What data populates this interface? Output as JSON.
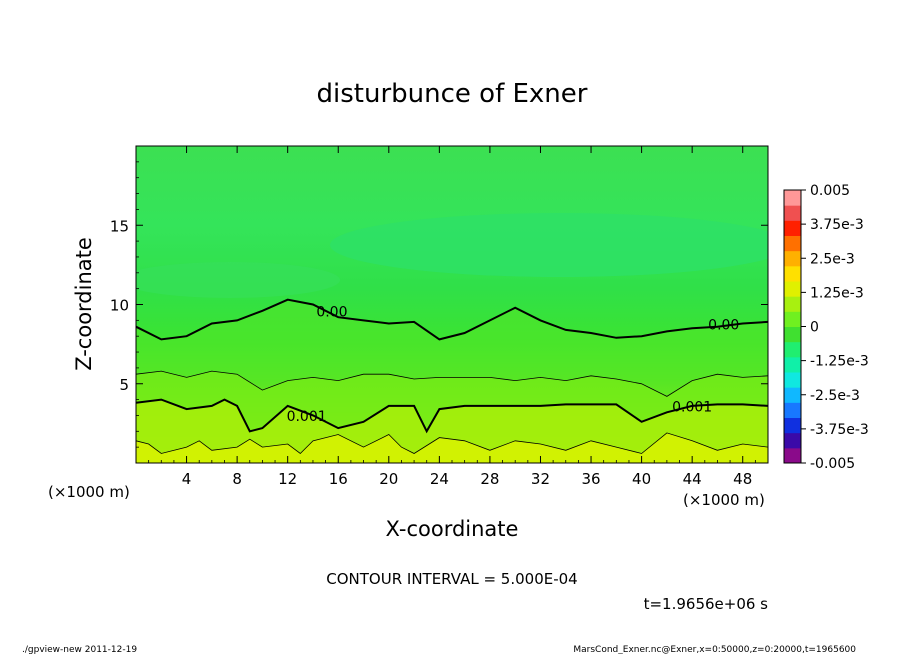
{
  "chart_data": {
    "type": "heatmap",
    "title": "disturbunce of Exner",
    "xlabel": "X-coordinate",
    "ylabel": "Z-coordinate",
    "x_unit_left": "(×1000 m)",
    "x_unit_right": "(×1000 m)",
    "xlim": [
      0,
      50
    ],
    "ylim": [
      0,
      20
    ],
    "x_ticks": [
      "4",
      "8",
      "12",
      "16",
      "20",
      "24",
      "28",
      "32",
      "36",
      "40",
      "44",
      "48"
    ],
    "y_ticks": [
      "5",
      "10",
      "15"
    ],
    "colorbar": {
      "labels": [
        "0.005",
        "3.75e-3",
        "2.5e-3",
        "1.25e-3",
        "0",
        "-1.25e-3",
        "-2.5e-3",
        "-3.75e-3",
        "-0.005"
      ],
      "min": -0.005,
      "max": 0.005,
      "colors": [
        "#8a0a8a",
        "#3a0aa8",
        "#1030e0",
        "#1878ff",
        "#10b8ff",
        "#10e8e0",
        "#10f0a8",
        "#20ee70",
        "#40e030",
        "#70f020",
        "#a8f010",
        "#e0f000",
        "#ffe000",
        "#ffb000",
        "#ff7000",
        "#ff2000",
        "#f05050",
        "#ff9898"
      ]
    },
    "contour_labels": [
      {
        "text": "0.00",
        "x": 15.5,
        "z": 9.3
      },
      {
        "text": "0.00",
        "x": 46.5,
        "z": 8.5
      },
      {
        "text": "0.001",
        "x": 13.5,
        "z": 2.7
      },
      {
        "text": "0.001",
        "x": 44.0,
        "z": 3.3
      }
    ],
    "zero_contour": [
      [
        0,
        8.6
      ],
      [
        2,
        7.8
      ],
      [
        4,
        8.0
      ],
      [
        6,
        8.8
      ],
      [
        8,
        9.0
      ],
      [
        10,
        9.6
      ],
      [
        12,
        10.3
      ],
      [
        14,
        10.0
      ],
      [
        16,
        9.2
      ],
      [
        18,
        9.0
      ],
      [
        20,
        8.8
      ],
      [
        22,
        8.9
      ],
      [
        24,
        7.8
      ],
      [
        26,
        8.2
      ],
      [
        28,
        9.0
      ],
      [
        30,
        9.8
      ],
      [
        32,
        9.0
      ],
      [
        34,
        8.4
      ],
      [
        36,
        8.2
      ],
      [
        38,
        7.9
      ],
      [
        40,
        8.0
      ],
      [
        42,
        8.3
      ],
      [
        44,
        8.5
      ],
      [
        46,
        8.6
      ],
      [
        48,
        8.8
      ],
      [
        50,
        8.9
      ]
    ],
    "contour_0005": [
      [
        0,
        5.6
      ],
      [
        2,
        5.8
      ],
      [
        4,
        5.4
      ],
      [
        6,
        5.8
      ],
      [
        8,
        5.6
      ],
      [
        10,
        4.6
      ],
      [
        12,
        5.2
      ],
      [
        14,
        5.4
      ],
      [
        16,
        5.2
      ],
      [
        18,
        5.6
      ],
      [
        20,
        5.6
      ],
      [
        22,
        5.3
      ],
      [
        24,
        5.4
      ],
      [
        26,
        5.4
      ],
      [
        28,
        5.4
      ],
      [
        30,
        5.2
      ],
      [
        32,
        5.4
      ],
      [
        34,
        5.2
      ],
      [
        36,
        5.5
      ],
      [
        38,
        5.3
      ],
      [
        40,
        5.0
      ],
      [
        42,
        4.2
      ],
      [
        44,
        5.2
      ],
      [
        46,
        5.6
      ],
      [
        48,
        5.4
      ],
      [
        50,
        5.5
      ]
    ],
    "contour_001": [
      [
        0,
        3.8
      ],
      [
        2,
        4.0
      ],
      [
        4,
        3.4
      ],
      [
        6,
        3.6
      ],
      [
        7,
        4.0
      ],
      [
        8,
        3.6
      ],
      [
        9,
        2.0
      ],
      [
        10,
        2.2
      ],
      [
        12,
        3.6
      ],
      [
        14,
        3.0
      ],
      [
        16,
        2.2
      ],
      [
        18,
        2.6
      ],
      [
        20,
        3.6
      ],
      [
        22,
        3.6
      ],
      [
        23,
        2.0
      ],
      [
        24,
        3.4
      ],
      [
        26,
        3.6
      ],
      [
        28,
        3.6
      ],
      [
        30,
        3.6
      ],
      [
        32,
        3.6
      ],
      [
        34,
        3.7
      ],
      [
        36,
        3.7
      ],
      [
        38,
        3.7
      ],
      [
        40,
        2.6
      ],
      [
        42,
        3.2
      ],
      [
        44,
        3.6
      ],
      [
        46,
        3.7
      ],
      [
        48,
        3.7
      ],
      [
        50,
        3.6
      ]
    ],
    "contour_0015": [
      [
        0,
        1.4
      ],
      [
        1,
        1.2
      ],
      [
        2,
        0.6
      ],
      [
        4,
        1.0
      ],
      [
        5,
        1.4
      ],
      [
        6,
        0.8
      ],
      [
        8,
        1.0
      ],
      [
        9,
        1.5
      ],
      [
        10,
        1.0
      ],
      [
        12,
        1.2
      ],
      [
        13,
        0.6
      ],
      [
        14,
        1.4
      ],
      [
        16,
        1.8
      ],
      [
        18,
        1.0
      ],
      [
        20,
        1.8
      ],
      [
        21,
        1.0
      ],
      [
        22,
        0.6
      ],
      [
        24,
        1.6
      ],
      [
        26,
        1.4
      ],
      [
        28,
        0.8
      ],
      [
        30,
        1.4
      ],
      [
        32,
        1.2
      ],
      [
        34,
        0.8
      ],
      [
        36,
        1.4
      ],
      [
        38,
        1.0
      ],
      [
        40,
        0.6
      ],
      [
        42,
        1.9
      ],
      [
        44,
        1.4
      ],
      [
        46,
        0.8
      ],
      [
        48,
        1.2
      ],
      [
        50,
        1.0
      ]
    ]
  },
  "contour_interval": "CONTOUR INTERVAL = 5.000E-04",
  "time_label": "t=1.9656e+06 s",
  "footer_left": "./gpview-new   2011-12-19",
  "footer_right": "MarsCond_Exner.nc@Exner,x=0:50000,z=0:20000,t=1965600"
}
